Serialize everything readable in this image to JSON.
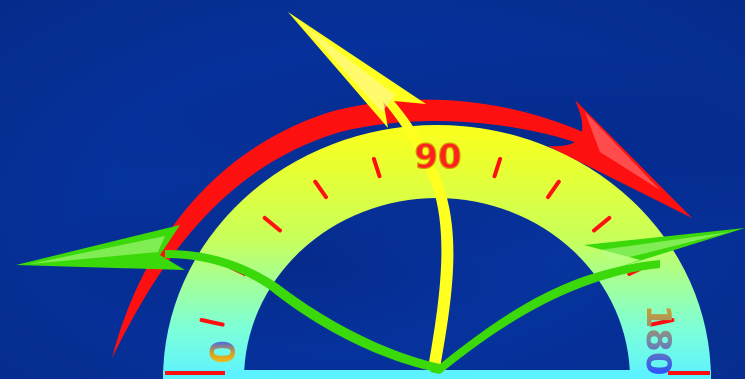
{
  "protractor": {
    "label_start": "0",
    "label_middle": "90",
    "label_end": "180",
    "ticks_degrees": [
      0,
      15,
      30,
      45,
      60,
      75,
      90,
      105,
      120,
      135,
      150,
      165,
      180
    ]
  },
  "colors": {
    "background": "#06319a",
    "band_top": "#ffff00",
    "band_bottom": "#5ff0ff",
    "tick": "#ff1010",
    "label_90": "#ff2020",
    "arrow_red": "#ff1010",
    "arrow_yellow": "#ffff20",
    "arrow_green": "#3bd80a"
  }
}
